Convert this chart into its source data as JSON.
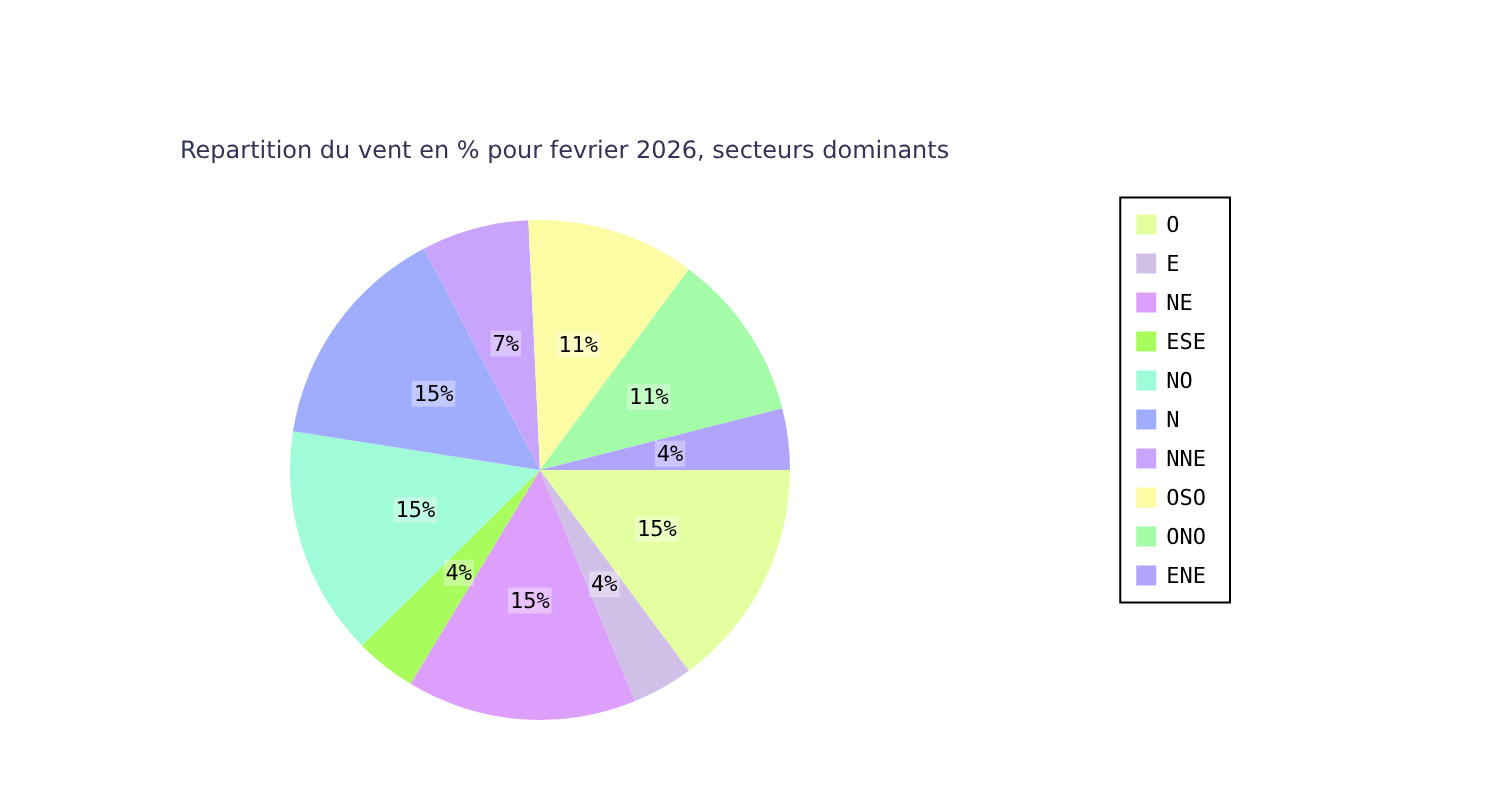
{
  "chart_data": {
    "type": "pie",
    "title": "Repartition du vent en % pour fevrier 2026, secteurs dominants",
    "categories": [
      "O",
      "E",
      "NE",
      "ESE",
      "NO",
      "N",
      "NNE",
      "OSO",
      "ONO",
      "ENE"
    ],
    "values": [
      15,
      4,
      15,
      4,
      15,
      15,
      7,
      11,
      11,
      4
    ],
    "value_labels": [
      "15%",
      "4%",
      "15%",
      "4%",
      "15%",
      "15%",
      "7%",
      "11%",
      "11%",
      "4%"
    ],
    "colors": [
      "#e4ffa0",
      "#d0c0e8",
      "#dca0fc",
      "#a8fc5c",
      "#a0fcd8",
      "#a0acfc",
      "#c8a4fc",
      "#fcfca4",
      "#a4fca8",
      "#b0a4fc"
    ],
    "legend": "right"
  }
}
